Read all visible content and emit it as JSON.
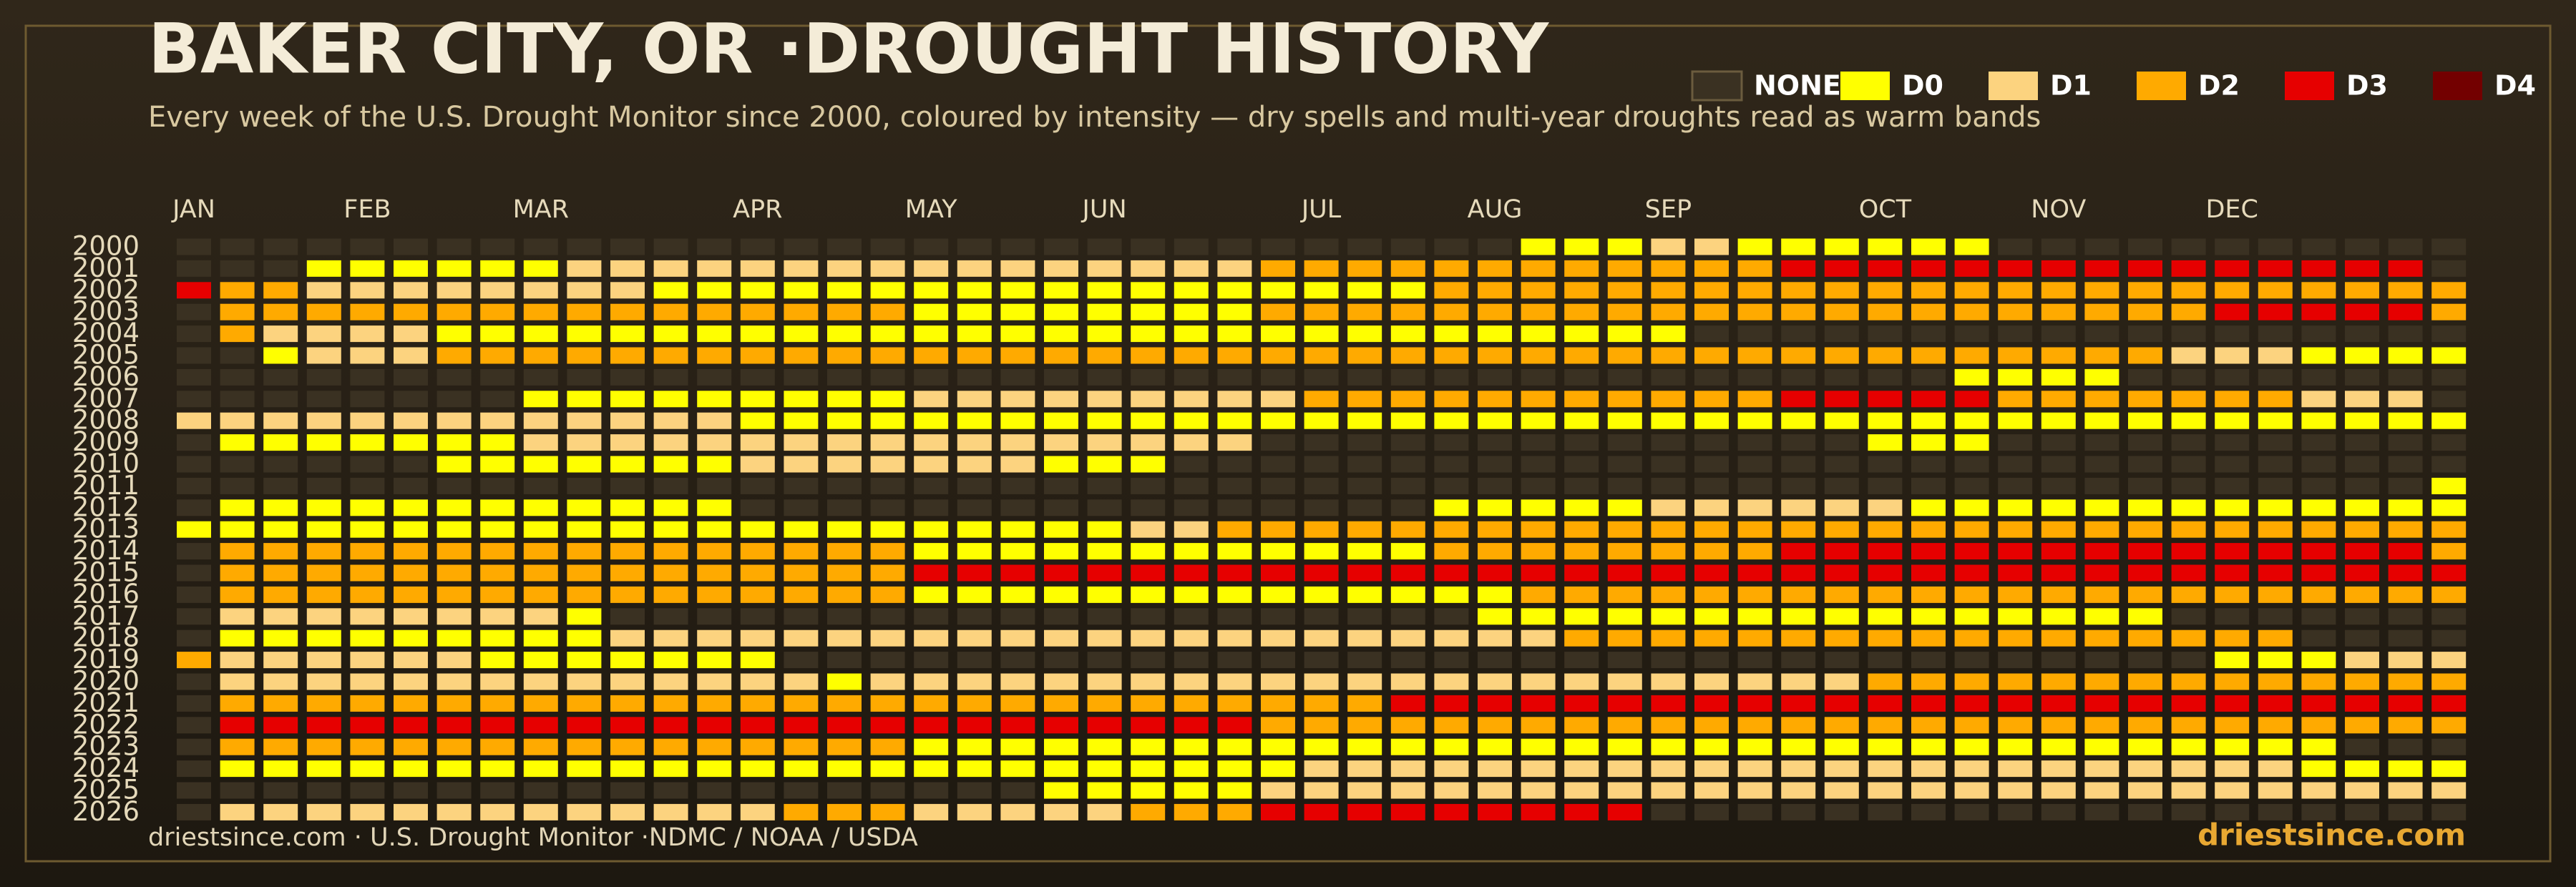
{
  "chart_data": {
    "type": "heatmap",
    "title": "BAKER CITY, OR ·DROUGHT HISTORY",
    "subtitle": "Every week of the U.S. Drought Monitor since 2000, coloured by intensity — dry spells and multi-year droughts read as warm bands",
    "source": "driestsince.com  · U.S. Drought Monitor ·NDMC / NOAA / USDA",
    "brand": "driestsince.com",
    "legend": [
      {
        "name": "NONE",
        "value": null,
        "color": "#3a3122"
      },
      {
        "name": "D0",
        "value": 0,
        "color": "#ffff00"
      },
      {
        "name": "D1",
        "value": 1,
        "color": "#fcd37f"
      },
      {
        "name": "D2",
        "value": 2,
        "color": "#ffaa00"
      },
      {
        "name": "D3",
        "value": 3,
        "color": "#e60000"
      },
      {
        "name": "D4",
        "value": 4,
        "color": "#730000"
      }
    ],
    "categories": [
      "JAN",
      null,
      null,
      null,
      "FEB",
      null,
      null,
      null,
      "MAR",
      null,
      null,
      null,
      null,
      "APR",
      null,
      null,
      null,
      "MAY",
      null,
      null,
      null,
      "JUN",
      null,
      null,
      null,
      null,
      "JUL",
      null,
      null,
      null,
      "AUG",
      null,
      null,
      null,
      "SEP",
      null,
      null,
      null,
      null,
      "OCT",
      null,
      null,
      null,
      "NOV",
      null,
      null,
      null,
      "DEC",
      null,
      null,
      null,
      null,
      null
    ],
    "y_categories": [
      "2000",
      "2001",
      "2002",
      "2003",
      "2004",
      "2005",
      "2006",
      "2007",
      "2008",
      "2009",
      "2010",
      "2011",
      "2012",
      "2013",
      "2014",
      "2015",
      "2016",
      "2017",
      "2018",
      "2019",
      "2020",
      "2021",
      "2022",
      "2023",
      "2024",
      "2025",
      "2026"
    ],
    "values": [
      [
        null,
        null,
        null,
        null,
        null,
        null,
        null,
        null,
        null,
        null,
        null,
        null,
        null,
        null,
        null,
        null,
        null,
        null,
        null,
        null,
        null,
        null,
        null,
        null,
        null,
        null,
        null,
        null,
        null,
        null,
        null,
        0,
        0,
        0,
        1,
        1,
        0,
        0,
        0,
        0,
        0,
        0,
        null,
        null,
        null,
        null,
        null,
        null,
        null,
        null,
        null,
        null,
        null
      ],
      [
        null,
        null,
        null,
        0,
        0,
        0,
        0,
        0,
        0,
        1,
        1,
        1,
        1,
        1,
        1,
        1,
        1,
        1,
        1,
        1,
        1,
        1,
        1,
        1,
        1,
        2,
        2,
        2,
        2,
        2,
        2,
        2,
        2,
        2,
        2,
        2,
        2,
        3,
        3,
        3,
        3,
        3,
        3,
        3,
        3,
        3,
        3,
        3,
        3,
        3,
        3,
        3,
        null
      ],
      [
        3,
        2,
        2,
        1,
        1,
        1,
        1,
        1,
        1,
        1,
        1,
        0,
        0,
        0,
        0,
        0,
        0,
        0,
        0,
        0,
        0,
        0,
        0,
        0,
        0,
        0,
        0,
        0,
        0,
        2,
        2,
        2,
        2,
        2,
        2,
        2,
        2,
        2,
        2,
        2,
        2,
        2,
        2,
        2,
        2,
        2,
        2,
        2,
        2,
        2,
        2,
        2,
        2
      ],
      [
        null,
        2,
        2,
        2,
        2,
        2,
        2,
        2,
        2,
        2,
        2,
        2,
        2,
        2,
        2,
        2,
        2,
        0,
        0,
        0,
        0,
        0,
        0,
        0,
        0,
        2,
        2,
        2,
        2,
        2,
        2,
        2,
        2,
        2,
        2,
        2,
        2,
        2,
        2,
        2,
        2,
        2,
        2,
        2,
        2,
        2,
        2,
        3,
        3,
        3,
        3,
        3,
        2
      ],
      [
        null,
        2,
        1,
        1,
        1,
        1,
        0,
        0,
        0,
        0,
        0,
        0,
        0,
        0,
        0,
        0,
        0,
        0,
        0,
        0,
        0,
        0,
        0,
        0,
        0,
        0,
        0,
        0,
        0,
        0,
        0,
        0,
        0,
        0,
        0,
        null,
        null,
        null,
        null,
        null,
        null,
        null,
        null,
        null,
        null,
        null,
        null,
        null,
        null,
        null,
        null,
        null,
        null
      ],
      [
        null,
        null,
        0,
        1,
        1,
        1,
        2,
        2,
        2,
        2,
        2,
        2,
        2,
        2,
        2,
        2,
        2,
        2,
        2,
        2,
        2,
        2,
        2,
        2,
        2,
        2,
        2,
        2,
        2,
        2,
        2,
        2,
        2,
        2,
        2,
        2,
        2,
        2,
        2,
        2,
        2,
        2,
        2,
        2,
        2,
        2,
        1,
        1,
        1,
        0,
        0,
        0,
        0
      ],
      [
        null,
        null,
        null,
        null,
        null,
        null,
        null,
        null,
        null,
        null,
        null,
        null,
        null,
        null,
        null,
        null,
        null,
        null,
        null,
        null,
        null,
        null,
        null,
        null,
        null,
        null,
        null,
        null,
        null,
        null,
        null,
        null,
        null,
        null,
        null,
        null,
        null,
        null,
        null,
        null,
        null,
        0,
        0,
        0,
        0,
        null,
        null,
        null,
        null,
        null,
        null,
        null,
        null
      ],
      [
        null,
        null,
        null,
        null,
        null,
        null,
        null,
        null,
        0,
        0,
        0,
        0,
        0,
        0,
        0,
        0,
        0,
        1,
        1,
        1,
        1,
        1,
        1,
        1,
        1,
        1,
        2,
        2,
        2,
        2,
        2,
        2,
        2,
        2,
        2,
        2,
        2,
        3,
        3,
        3,
        3,
        3,
        2,
        2,
        2,
        2,
        2,
        2,
        2,
        1,
        1,
        1,
        null
      ],
      [
        1,
        1,
        1,
        1,
        1,
        1,
        1,
        1,
        1,
        1,
        1,
        1,
        1,
        0,
        0,
        0,
        0,
        0,
        0,
        0,
        0,
        0,
        0,
        0,
        0,
        0,
        0,
        0,
        0,
        0,
        0,
        0,
        0,
        0,
        0,
        0,
        0,
        0,
        0,
        0,
        0,
        0,
        0,
        0,
        0,
        0,
        0,
        0,
        0,
        0,
        0,
        0,
        0
      ],
      [
        null,
        0,
        0,
        0,
        0,
        0,
        0,
        0,
        1,
        1,
        1,
        1,
        1,
        1,
        1,
        1,
        1,
        1,
        1,
        1,
        1,
        1,
        1,
        1,
        1,
        null,
        null,
        null,
        null,
        null,
        null,
        null,
        null,
        null,
        null,
        null,
        null,
        null,
        null,
        0,
        0,
        0,
        null,
        null,
        null,
        null,
        null,
        null,
        null,
        null,
        null,
        null,
        null
      ],
      [
        null,
        null,
        null,
        null,
        null,
        null,
        0,
        0,
        0,
        0,
        0,
        0,
        0,
        1,
        1,
        1,
        1,
        1,
        1,
        1,
        0,
        0,
        0,
        null,
        null,
        null,
        null,
        null,
        null,
        null,
        null,
        null,
        null,
        null,
        null,
        null,
        null,
        null,
        null,
        null,
        null,
        null,
        null,
        null,
        null,
        null,
        null,
        null,
        null,
        null,
        null,
        null,
        null
      ],
      [
        null,
        null,
        null,
        null,
        null,
        null,
        null,
        null,
        null,
        null,
        null,
        null,
        null,
        null,
        null,
        null,
        null,
        null,
        null,
        null,
        null,
        null,
        null,
        null,
        null,
        null,
        null,
        null,
        null,
        null,
        null,
        null,
        null,
        null,
        null,
        null,
        null,
        null,
        null,
        null,
        null,
        null,
        null,
        null,
        null,
        null,
        null,
        null,
        null,
        null,
        null,
        null,
        0
      ],
      [
        null,
        0,
        0,
        0,
        0,
        0,
        0,
        0,
        0,
        0,
        0,
        0,
        0,
        null,
        null,
        null,
        null,
        null,
        null,
        null,
        null,
        null,
        null,
        null,
        null,
        null,
        null,
        null,
        null,
        0,
        0,
        0,
        0,
        0,
        1,
        1,
        1,
        1,
        1,
        1,
        0,
        0,
        0,
        0,
        0,
        0,
        0,
        0,
        0,
        0,
        0,
        0,
        0
      ],
      [
        0,
        0,
        0,
        0,
        0,
        0,
        0,
        0,
        0,
        0,
        0,
        0,
        0,
        0,
        0,
        0,
        0,
        0,
        0,
        0,
        0,
        0,
        1,
        1,
        2,
        2,
        2,
        2,
        2,
        2,
        2,
        2,
        2,
        2,
        2,
        2,
        2,
        2,
        2,
        2,
        2,
        2,
        2,
        2,
        2,
        2,
        2,
        2,
        2,
        2,
        2,
        2,
        2
      ],
      [
        null,
        2,
        2,
        2,
        2,
        2,
        2,
        2,
        2,
        2,
        2,
        2,
        2,
        2,
        2,
        2,
        2,
        0,
        0,
        0,
        0,
        0,
        0,
        0,
        0,
        0,
        0,
        0,
        0,
        2,
        2,
        2,
        2,
        2,
        2,
        2,
        2,
        3,
        3,
        3,
        3,
        3,
        3,
        3,
        3,
        3,
        3,
        3,
        3,
        3,
        3,
        3,
        2
      ],
      [
        null,
        2,
        2,
        2,
        2,
        2,
        2,
        2,
        2,
        2,
        2,
        2,
        2,
        2,
        2,
        2,
        2,
        3,
        3,
        3,
        3,
        3,
        3,
        3,
        3,
        3,
        3,
        3,
        3,
        3,
        3,
        3,
        3,
        3,
        3,
        3,
        3,
        3,
        3,
        3,
        3,
        3,
        3,
        3,
        3,
        3,
        3,
        3,
        3,
        3,
        3,
        3,
        3
      ],
      [
        null,
        2,
        2,
        2,
        2,
        2,
        2,
        2,
        2,
        2,
        2,
        2,
        2,
        2,
        2,
        2,
        2,
        0,
        0,
        0,
        0,
        0,
        0,
        0,
        0,
        0,
        0,
        0,
        0,
        0,
        0,
        2,
        2,
        2,
        2,
        2,
        2,
        2,
        2,
        2,
        2,
        2,
        2,
        2,
        2,
        2,
        2,
        2,
        2,
        2,
        2,
        2,
        2
      ],
      [
        null,
        1,
        1,
        1,
        1,
        1,
        1,
        1,
        1,
        0,
        null,
        null,
        null,
        null,
        null,
        null,
        null,
        null,
        null,
        null,
        null,
        null,
        null,
        null,
        null,
        null,
        null,
        null,
        null,
        null,
        0,
        0,
        0,
        0,
        0,
        0,
        0,
        0,
        0,
        0,
        0,
        0,
        0,
        0,
        0,
        0,
        null,
        null,
        null,
        null,
        null,
        null,
        null
      ],
      [
        null,
        0,
        0,
        0,
        0,
        0,
        0,
        0,
        0,
        0,
        1,
        1,
        1,
        1,
        1,
        1,
        1,
        1,
        1,
        1,
        1,
        1,
        1,
        1,
        1,
        1,
        1,
        1,
        1,
        1,
        1,
        1,
        2,
        2,
        2,
        2,
        2,
        2,
        2,
        2,
        2,
        2,
        2,
        2,
        2,
        2,
        2,
        2,
        2,
        null,
        null,
        null,
        null
      ],
      [
        2,
        1,
        1,
        1,
        1,
        1,
        1,
        0,
        0,
        0,
        0,
        0,
        0,
        0,
        null,
        null,
        null,
        null,
        null,
        null,
        null,
        null,
        null,
        null,
        null,
        null,
        null,
        null,
        null,
        null,
        null,
        null,
        null,
        null,
        null,
        null,
        null,
        null,
        null,
        null,
        null,
        null,
        null,
        null,
        null,
        null,
        null,
        0,
        0,
        0,
        1,
        1,
        1
      ],
      [
        null,
        1,
        1,
        1,
        1,
        1,
        1,
        1,
        1,
        1,
        1,
        1,
        1,
        1,
        1,
        0,
        1,
        1,
        1,
        1,
        1,
        1,
        1,
        1,
        1,
        1,
        1,
        1,
        1,
        1,
        1,
        1,
        1,
        1,
        1,
        1,
        1,
        1,
        1,
        2,
        2,
        2,
        2,
        2,
        2,
        2,
        2,
        2,
        2,
        2,
        2,
        2,
        2
      ],
      [
        null,
        2,
        2,
        2,
        2,
        2,
        2,
        2,
        2,
        2,
        2,
        2,
        2,
        2,
        2,
        2,
        2,
        2,
        2,
        2,
        2,
        2,
        2,
        2,
        2,
        2,
        2,
        2,
        3,
        3,
        3,
        3,
        3,
        3,
        3,
        3,
        3,
        3,
        3,
        3,
        3,
        3,
        3,
        3,
        3,
        3,
        3,
        3,
        3,
        3,
        3,
        3,
        3
      ],
      [
        null,
        3,
        3,
        3,
        3,
        3,
        3,
        3,
        3,
        3,
        3,
        3,
        3,
        3,
        3,
        3,
        3,
        3,
        3,
        3,
        3,
        3,
        3,
        3,
        3,
        2,
        2,
        2,
        2,
        2,
        2,
        2,
        2,
        2,
        2,
        2,
        2,
        2,
        2,
        2,
        2,
        2,
        2,
        2,
        2,
        2,
        2,
        2,
        2,
        2,
        2,
        2,
        2
      ],
      [
        null,
        2,
        2,
        2,
        2,
        2,
        2,
        2,
        2,
        2,
        2,
        2,
        2,
        2,
        2,
        2,
        2,
        0,
        0,
        0,
        0,
        0,
        0,
        0,
        0,
        0,
        0,
        0,
        0,
        0,
        0,
        0,
        0,
        0,
        0,
        0,
        0,
        0,
        0,
        0,
        0,
        0,
        0,
        0,
        0,
        0,
        0,
        0,
        0,
        0,
        null,
        null,
        null
      ],
      [
        null,
        0,
        0,
        0,
        0,
        0,
        0,
        0,
        0,
        0,
        0,
        0,
        0,
        0,
        0,
        0,
        0,
        0,
        0,
        0,
        0,
        0,
        0,
        0,
        0,
        0,
        1,
        1,
        1,
        1,
        1,
        1,
        1,
        1,
        1,
        1,
        1,
        1,
        1,
        1,
        1,
        1,
        1,
        1,
        1,
        1,
        1,
        1,
        1,
        0,
        0,
        0,
        0
      ],
      [
        null,
        null,
        null,
        null,
        null,
        null,
        null,
        null,
        null,
        null,
        null,
        null,
        null,
        null,
        null,
        null,
        null,
        null,
        null,
        null,
        0,
        0,
        0,
        0,
        0,
        1,
        1,
        1,
        1,
        1,
        1,
        1,
        1,
        1,
        1,
        1,
        1,
        1,
        1,
        1,
        1,
        1,
        1,
        1,
        1,
        1,
        1,
        1,
        1,
        1,
        1,
        1,
        1
      ],
      [
        null,
        1,
        1,
        1,
        1,
        1,
        1,
        1,
        1,
        1,
        1,
        1,
        1,
        1,
        2,
        2,
        2,
        1,
        1,
        1,
        1,
        1,
        2,
        2,
        2,
        3,
        3,
        3,
        3,
        3,
        3,
        3,
        3,
        3,
        null,
        null,
        null,
        null,
        null,
        null,
        null,
        null,
        null,
        null,
        null,
        null,
        null,
        null,
        null,
        null,
        null,
        null,
        null
      ]
    ]
  }
}
